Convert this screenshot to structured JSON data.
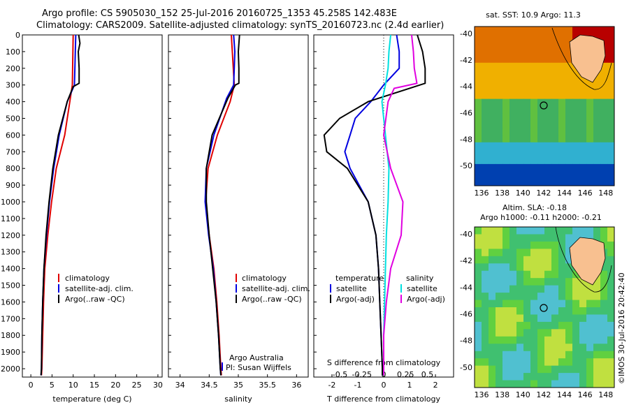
{
  "header": {
    "line1": "Argo profile: CS 5905030_152 25-Jul-2016 20160725_1353 45.258S 142.483E",
    "line2": "Climatology: CARS2009. Satellite-adjusted climatology: synTS_20160723.nc (2.4d earlier)"
  },
  "colors": {
    "climatology": "#e00000",
    "satellite": "#0000e0",
    "argo": "#000000",
    "s_satellite": "#00e0e0",
    "s_argo": "#e000e0"
  },
  "chart_data": [
    {
      "type": "line",
      "name": "temperature-profile",
      "xlabel": "temperature (deg C)",
      "ylabel": "",
      "xlim": [
        -2,
        31
      ],
      "ylim": [
        2050,
        0
      ],
      "xticks": [
        0,
        5,
        10,
        15,
        20,
        25,
        30
      ],
      "yticks": [
        0,
        100,
        200,
        300,
        400,
        500,
        600,
        700,
        800,
        900,
        1000,
        1100,
        1200,
        1300,
        1400,
        1500,
        1600,
        1700,
        1800,
        1900,
        2000
      ],
      "legend": [
        "climatology",
        "satellite-adj. clim.",
        "Argo(..raw -QC)"
      ],
      "series": [
        {
          "key": "clim",
          "depth": [
            0,
            300,
            400,
            600,
            800,
            1000,
            1200,
            1400,
            1600,
            1800,
            2000,
            2040
          ],
          "values": [
            10.0,
            9.8,
            9.2,
            8.0,
            6.0,
            4.9,
            4.0,
            3.3,
            3.0,
            2.8,
            2.6,
            2.5
          ]
        },
        {
          "key": "sat",
          "depth": [
            0,
            300,
            400,
            600,
            800,
            1000,
            1200,
            1400,
            1600,
            1800,
            2000,
            2040
          ],
          "values": [
            10.6,
            10.3,
            8.6,
            6.7,
            5.4,
            4.4,
            3.7,
            3.1,
            2.8,
            2.6,
            2.5,
            2.4
          ]
        },
        {
          "key": "argo",
          "depth": [
            0,
            50,
            100,
            200,
            290,
            310,
            400,
            600,
            800,
            1000,
            1200,
            1400,
            1600,
            1800,
            2000,
            2040
          ],
          "values": [
            11.3,
            11.6,
            11.2,
            11.4,
            11.4,
            10.0,
            8.6,
            6.5,
            5.2,
            4.3,
            3.6,
            3.1,
            2.8,
            2.6,
            2.5,
            2.4
          ]
        }
      ]
    },
    {
      "type": "line",
      "name": "salinity-profile",
      "xlabel": "salinity",
      "xlim": [
        33.8,
        36.2
      ],
      "ylim": [
        2050,
        0
      ],
      "xticks": [
        34,
        34.5,
        35,
        35.5,
        36
      ],
      "xticklabels": [
        "34",
        "34.5",
        "35",
        "35.5",
        "36"
      ],
      "legend": [
        "climatology",
        "satellite-adj. clim.",
        "Argo(..raw -QC)"
      ],
      "series": [
        {
          "key": "clim",
          "depth": [
            0,
            300,
            400,
            600,
            800,
            1000,
            1200,
            1400,
            1600,
            1800,
            2000,
            2040
          ],
          "values": [
            34.88,
            34.93,
            34.86,
            34.64,
            34.48,
            34.44,
            34.5,
            34.58,
            34.63,
            34.67,
            34.7,
            34.71
          ]
        },
        {
          "key": "sat",
          "depth": [
            0,
            100,
            200,
            300,
            380,
            600,
            800,
            1000,
            1200,
            1400,
            1600,
            1800,
            2000,
            2040
          ],
          "values": [
            34.92,
            34.94,
            34.93,
            34.92,
            34.8,
            34.58,
            34.45,
            34.43,
            34.49,
            34.57,
            34.62,
            34.66,
            34.69,
            34.7
          ]
        },
        {
          "key": "argo",
          "depth": [
            0,
            100,
            200,
            290,
            300,
            380,
            600,
            800,
            1000,
            1200,
            1400,
            1600,
            1800,
            2000,
            2040
          ],
          "values": [
            35.02,
            35.0,
            35.01,
            35.01,
            34.95,
            34.82,
            34.55,
            34.45,
            34.45,
            34.5,
            34.56,
            34.62,
            34.66,
            34.69,
            34.7
          ]
        }
      ]
    },
    {
      "type": "line",
      "name": "difference-profile",
      "xlabel": "T difference from climatology",
      "xlabel2": "S difference from climatology",
      "xlim": [
        -2.7,
        2.7
      ],
      "ylim": [
        2050,
        0
      ],
      "xticks": [
        -2,
        -1,
        0,
        1,
        2
      ],
      "sticks": [
        -0.5,
        -0.25,
        0,
        0.25,
        0.5
      ],
      "sticklabels": [
        "-0.5",
        "-0.25",
        "0",
        "0.25",
        "0.5"
      ],
      "legend_t_title": "temperature",
      "legend_s_title": "salinity",
      "legend_t": [
        "satellite",
        "Argo(-adj)"
      ],
      "legend_s": [
        "satellite",
        "Argo(-adj)"
      ],
      "series": [
        {
          "key": "t_sat",
          "depth": [
            0,
            100,
            200,
            300,
            400,
            500,
            600,
            700,
            800,
            1000,
            1200,
            1400,
            1600,
            1800,
            2000,
            2040
          ],
          "values": [
            0.5,
            0.6,
            0.6,
            0.0,
            -0.5,
            -1.1,
            -1.3,
            -1.5,
            -1.3,
            -0.6,
            -0.3,
            -0.2,
            -0.15,
            -0.1,
            -0.05,
            -0.05
          ]
        },
        {
          "key": "t_argo",
          "depth": [
            0,
            100,
            200,
            290,
            400,
            500,
            600,
            700,
            800,
            1000,
            1200,
            1400,
            1600,
            1800,
            2000,
            2040
          ],
          "values": [
            1.3,
            1.5,
            1.6,
            1.6,
            -0.6,
            -1.7,
            -2.3,
            -2.2,
            -1.4,
            -0.6,
            -0.3,
            -0.2,
            -0.15,
            -0.1,
            -0.05,
            -0.05
          ]
        },
        {
          "key": "s_sat",
          "depth": [
            0,
            100,
            200,
            300,
            400,
            600,
            800,
            1000,
            1200,
            1400,
            1600,
            1800,
            2000,
            2040
          ],
          "values": [
            0.08,
            0.06,
            0.05,
            0.02,
            -0.02,
            0.02,
            0.06,
            0.05,
            0.03,
            0.02,
            0.01,
            0.0,
            0.0,
            0.0
          ]
        },
        {
          "key": "s_argo",
          "depth": [
            0,
            100,
            200,
            290,
            320,
            400,
            600,
            800,
            1000,
            1200,
            1400,
            1600,
            1800,
            2000,
            2040
          ],
          "values": [
            0.32,
            0.34,
            0.35,
            0.38,
            0.12,
            0.05,
            0.0,
            0.08,
            0.22,
            0.2,
            0.08,
            0.03,
            0.0,
            0.0,
            0.0
          ]
        }
      ]
    }
  ],
  "maps": [
    {
      "title": "sat. SST: 10.9  Argo: 11.3",
      "title2": "",
      "yticks": [
        -40,
        -42,
        -44,
        -46,
        -48,
        -50
      ],
      "xticks": [
        136,
        138,
        140,
        142,
        144,
        146,
        148
      ]
    },
    {
      "title": "Altim. SLA: -0.18",
      "title2": "Argo h1000: -0.11 h2000: -0.21",
      "yticks": [
        -40,
        -42,
        -44,
        -46,
        -48,
        -50
      ],
      "xticks": [
        136,
        138,
        140,
        142,
        144,
        146,
        148
      ]
    }
  ],
  "annotations": {
    "credit1": "Argo Australia",
    "credit2": "PI: Susan Wijffels",
    "stamp": "©IMOS 30-Jul-2016 20:42:40"
  }
}
